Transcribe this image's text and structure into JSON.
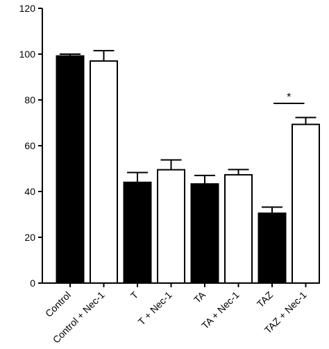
{
  "chart_data": {
    "type": "bar",
    "title": "",
    "xlabel": "",
    "ylabel": "",
    "ylim": [
      0,
      120
    ],
    "yticks": [
      0,
      20,
      40,
      60,
      80,
      100,
      120
    ],
    "grid": false,
    "legend": "none",
    "categories": [
      "Control",
      "Control + Nec-1",
      "T",
      "T + Nec-1",
      "TA",
      "TA + Nec-1",
      "TAZ",
      "TAZ + Nec-1"
    ],
    "values": [
      99.2,
      97.0,
      44.0,
      49.5,
      43.3,
      47.3,
      30.5,
      69.3
    ],
    "errors": [
      0.8,
      4.5,
      4.3,
      4.3,
      3.7,
      2.3,
      2.7,
      3.0
    ],
    "fills": [
      "#000000",
      "#ffffff",
      "#000000",
      "#ffffff",
      "#000000",
      "#ffffff",
      "#000000",
      "#ffffff"
    ],
    "annotations": [
      {
        "text": "*",
        "from_category": 6,
        "to_category": 7,
        "y": 78.5
      }
    ]
  }
}
